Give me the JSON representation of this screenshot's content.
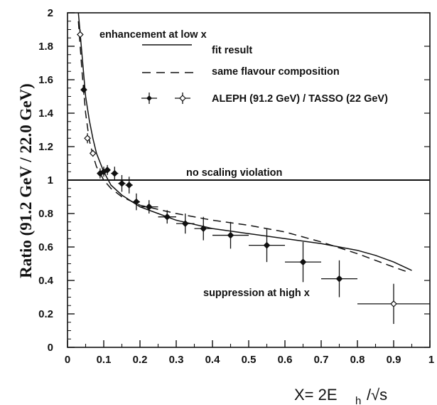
{
  "chart_data": {
    "type": "scatter",
    "xlabel": "X= 2E",
    "xlabel_sub": "h",
    "xlabel_tail": "/√s",
    "ylabel": "Ratio (91.2 GeV / 22.0 GeV)",
    "xlim": [
      0,
      1
    ],
    "ylim": [
      0,
      2
    ],
    "x_ticks": [
      "0",
      "0.1",
      "0.2",
      "0.3",
      "0.4",
      "0.5",
      "0.6",
      "0.7",
      "0.8",
      "0.9",
      "1"
    ],
    "y_ticks": [
      "0",
      "0.2",
      "0.4",
      "0.6",
      "0.8",
      "1",
      "1.2",
      "1.4",
      "1.6",
      "1.8",
      "2"
    ],
    "grid": false,
    "legend_position": "top",
    "annotations": {
      "top": "enhancement at low x",
      "reference": "no scaling violation",
      "bottom": "suppression at high x"
    },
    "legend": {
      "fit": "fit result",
      "same_flavour": "same flavour composition",
      "data": "ALEPH (91.2 GeV) / TASSO (22 GeV)"
    },
    "reference_line": 1,
    "series": [
      {
        "name": "ALEPH (91.2 GeV) / TASSO (22 GeV)",
        "style": "points",
        "points": [
          {
            "x": 0.035,
            "y": 1.87,
            "xerr": 0.004,
            "yerr": 0.03,
            "open": true
          },
          {
            "x": 0.045,
            "y": 1.54,
            "xerr": 0.005,
            "yerr": 0.03,
            "open": false
          },
          {
            "x": 0.055,
            "y": 1.25,
            "xerr": 0.005,
            "yerr": 0.03,
            "open": true
          },
          {
            "x": 0.07,
            "y": 1.16,
            "xerr": 0.005,
            "yerr": 0.02,
            "open": true
          },
          {
            "x": 0.09,
            "y": 1.04,
            "xerr": 0.005,
            "yerr": 0.03,
            "open": false
          },
          {
            "x": 0.1,
            "y": 1.05,
            "xerr": 0.005,
            "yerr": 0.03,
            "open": false
          },
          {
            "x": 0.11,
            "y": 1.06,
            "xerr": 0.005,
            "yerr": 0.03,
            "open": false
          },
          {
            "x": 0.13,
            "y": 1.04,
            "xerr": 0.01,
            "yerr": 0.04,
            "open": false
          },
          {
            "x": 0.15,
            "y": 0.98,
            "xerr": 0.01,
            "yerr": 0.05,
            "open": false
          },
          {
            "x": 0.17,
            "y": 0.97,
            "xerr": 0.01,
            "yerr": 0.05,
            "open": false
          },
          {
            "x": 0.19,
            "y": 0.87,
            "xerr": 0.01,
            "yerr": 0.05,
            "open": false
          },
          {
            "x": 0.225,
            "y": 0.84,
            "xerr": 0.025,
            "yerr": 0.04,
            "open": false
          },
          {
            "x": 0.275,
            "y": 0.78,
            "xerr": 0.025,
            "yerr": 0.04,
            "open": false
          },
          {
            "x": 0.325,
            "y": 0.74,
            "xerr": 0.025,
            "yerr": 0.06,
            "open": false
          },
          {
            "x": 0.375,
            "y": 0.71,
            "xerr": 0.025,
            "yerr": 0.07,
            "open": false
          },
          {
            "x": 0.45,
            "y": 0.67,
            "xerr": 0.05,
            "yerr": 0.08,
            "open": false
          },
          {
            "x": 0.55,
            "y": 0.61,
            "xerr": 0.05,
            "yerr": 0.1,
            "open": false
          },
          {
            "x": 0.65,
            "y": 0.51,
            "xerr": 0.05,
            "yerr": 0.12,
            "open": false
          },
          {
            "x": 0.75,
            "y": 0.41,
            "xerr": 0.05,
            "yerr": 0.11,
            "open": false
          },
          {
            "x": 0.9,
            "y": 0.26,
            "xerr": 0.1,
            "yerr": 0.12,
            "open": true
          }
        ]
      },
      {
        "name": "fit result",
        "style": "solid",
        "x": [
          0.03,
          0.04,
          0.05,
          0.06,
          0.07,
          0.08,
          0.1,
          0.12,
          0.15,
          0.2,
          0.25,
          0.3,
          0.4,
          0.5,
          0.6,
          0.7,
          0.8,
          0.85,
          0.9,
          0.95
        ],
        "y": [
          2.0,
          1.75,
          1.5,
          1.36,
          1.25,
          1.16,
          1.05,
          0.97,
          0.91,
          0.84,
          0.8,
          0.76,
          0.71,
          0.68,
          0.65,
          0.62,
          0.58,
          0.55,
          0.51,
          0.46
        ]
      },
      {
        "name": "same flavour composition",
        "style": "dashed",
        "x": [
          0.03,
          0.04,
          0.05,
          0.06,
          0.07,
          0.08,
          0.1,
          0.12,
          0.15,
          0.2,
          0.3,
          0.4,
          0.5,
          0.6,
          0.7,
          0.8,
          0.85,
          0.9,
          0.94
        ],
        "y": [
          1.95,
          1.65,
          1.4,
          1.24,
          1.15,
          1.08,
          1.0,
          0.95,
          0.9,
          0.85,
          0.8,
          0.76,
          0.73,
          0.69,
          0.63,
          0.56,
          0.52,
          0.48,
          0.45
        ]
      }
    ]
  }
}
